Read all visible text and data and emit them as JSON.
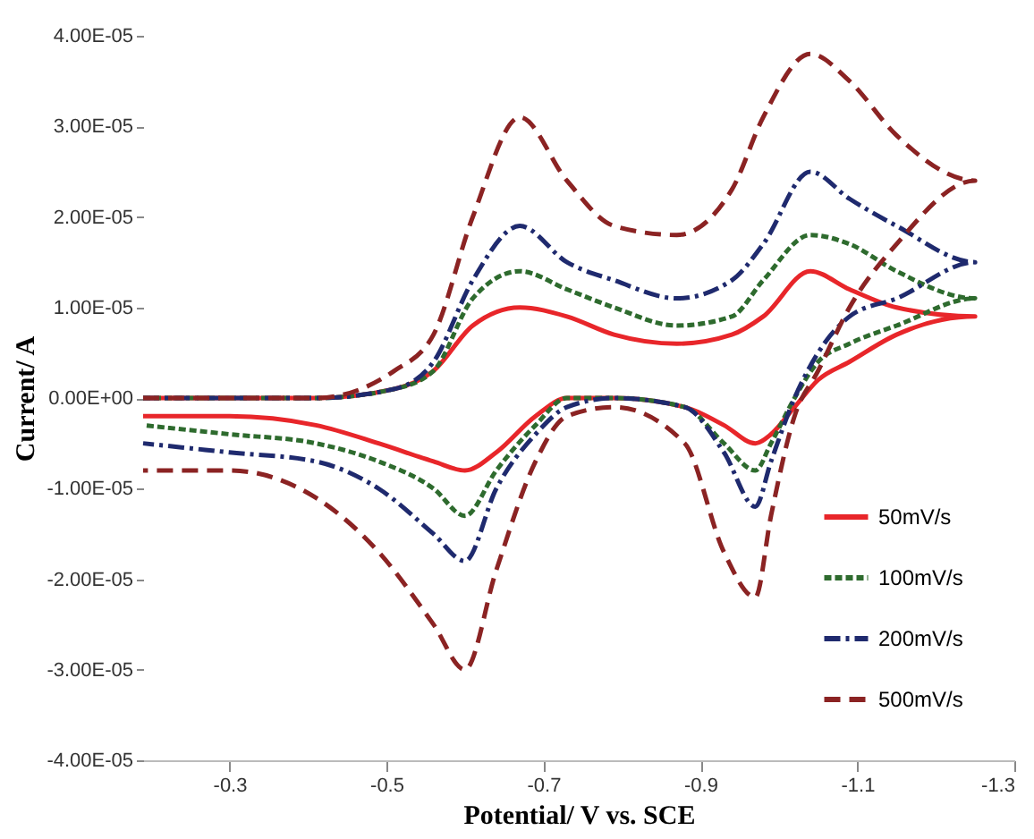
{
  "chart_data": {
    "type": "line",
    "xlabel": "Potential/ V vs. SCE",
    "ylabel": "Current/ A",
    "x": [
      -0.19,
      -0.3,
      -0.41,
      -0.51,
      -0.56,
      -0.61,
      -0.67,
      -0.73,
      -0.79,
      -0.87,
      -0.94,
      -0.98,
      -1.04,
      -1.09,
      -1.15,
      -1.25,
      -1.15,
      -1.09,
      -1.05,
      -1.02,
      -0.99,
      -0.97,
      -0.93,
      -0.88,
      -0.79,
      -0.73,
      -0.69,
      -0.64,
      -0.6,
      -0.56,
      -0.49,
      -0.41,
      -0.3,
      -0.19
    ],
    "series": [
      {
        "name": "50mV/s",
        "color": "#e8262a",
        "line_style": "solid",
        "values": [
          0,
          0,
          0,
          1e-06,
          3e-06,
          8e-06,
          1e-05,
          9e-06,
          7e-06,
          6e-06,
          7e-06,
          9e-06,
          1.4e-05,
          1.2e-05,
          1e-05,
          9e-06,
          7e-06,
          4e-06,
          2e-06,
          -1e-06,
          -4e-06,
          -5e-06,
          -3e-06,
          -1e-06,
          0,
          0,
          -2e-06,
          -6e-06,
          -8e-06,
          -7e-06,
          -5e-06,
          -3e-06,
          -2e-06,
          -2e-06
        ]
      },
      {
        "name": "100mV/s",
        "color": "#2e6b2e",
        "line_style": "dotted",
        "values": [
          0,
          0,
          0,
          1e-06,
          3e-06,
          1.1e-05,
          1.4e-05,
          1.2e-05,
          1e-05,
          8e-06,
          9e-06,
          1.3e-05,
          1.8e-05,
          1.7e-05,
          1.4e-05,
          1.1e-05,
          8e-06,
          6e-06,
          4e-06,
          0,
          -5e-06,
          -8e-06,
          -5e-06,
          -1e-06,
          0,
          0,
          -3e-06,
          -8e-06,
          -1.3e-05,
          -1e-05,
          -7e-06,
          -5e-06,
          -4e-06,
          -3e-06
        ]
      },
      {
        "name": "200mV/s",
        "color": "#1f2a6e",
        "line_style": "dashdot",
        "values": [
          0,
          0,
          0,
          1e-06,
          4e-06,
          1.3e-05,
          1.9e-05,
          1.5e-05,
          1.3e-05,
          1.1e-05,
          1.3e-05,
          1.7e-05,
          2.5e-05,
          2.2e-05,
          1.9e-05,
          1.5e-05,
          1.1e-05,
          9e-06,
          5e-06,
          0,
          -7e-06,
          -1.2e-05,
          -6e-06,
          -1e-06,
          0,
          -1e-06,
          -4e-06,
          -1e-05,
          -1.8e-05,
          -1.5e-05,
          -1e-05,
          -7e-06,
          -6e-06,
          -5e-06
        ]
      },
      {
        "name": "500mV/s",
        "color": "#8b2323",
        "line_style": "dashed",
        "values": [
          0,
          0,
          0,
          3e-06,
          7e-06,
          2e-05,
          3.1e-05,
          2.4e-05,
          1.9e-05,
          1.8e-05,
          2.3e-05,
          3.1e-05,
          3.8e-05,
          3.5e-05,
          2.9e-05,
          2.4e-05,
          1.7e-05,
          1e-05,
          3e-06,
          -2e-06,
          -1.3e-05,
          -2.2e-05,
          -1.7e-05,
          -5e-06,
          -1e-06,
          -2e-06,
          -7e-06,
          -1.9e-05,
          -3e-05,
          -2.5e-05,
          -1.7e-05,
          -1.1e-05,
          -8e-06,
          -8e-06
        ]
      }
    ],
    "xlim": [
      -0.19,
      -1.3
    ],
    "xticks": [
      -0.3,
      -0.5,
      -0.7,
      -0.9,
      -1.1,
      -1.3
    ],
    "ylim": [
      -4e-05,
      4e-05
    ],
    "yticks": [
      {
        "value": 4e-05,
        "label": "4.00E-05"
      },
      {
        "value": 3e-05,
        "label": "3.00E-05"
      },
      {
        "value": 2e-05,
        "label": "2.00E-05"
      },
      {
        "value": 1e-05,
        "label": "1.00E-05"
      },
      {
        "value": 0,
        "label": "0.00E+00"
      },
      {
        "value": -1e-05,
        "label": "-1.00E-05"
      },
      {
        "value": -2e-05,
        "label": "-2.00E-05"
      },
      {
        "value": -3e-05,
        "label": "-3.00E-05"
      },
      {
        "value": -4e-05,
        "label": "-4.00E-05"
      }
    ],
    "grid": false,
    "legend": "bottom right",
    "marker": "none"
  }
}
